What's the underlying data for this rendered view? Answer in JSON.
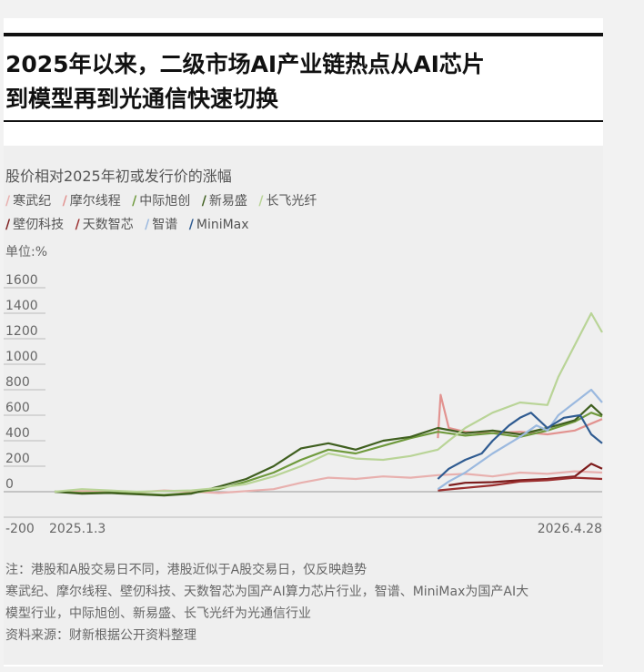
{
  "title_line1": "2025年以来，二级市场AI产业链热点从AI芯片",
  "title_line2": "到模型再到光通信快速切换",
  "chart_data": {
    "type": "line",
    "title": "股价相对2025年初或发行价的涨幅",
    "unit": "单位:%",
    "ylim": [
      -200,
      1600
    ],
    "yticks": [
      -200,
      0,
      200,
      400,
      600,
      800,
      1000,
      1200,
      1400,
      1600
    ],
    "x_start_label": "2025.1.3",
    "x_end_label": "2026.4.28",
    "legend": "top",
    "grid": true,
    "series": [
      {
        "name": "寒武纪",
        "color": "#e8b0ae",
        "points": [
          [
            0,
            0
          ],
          [
            0.05,
            5
          ],
          [
            0.1,
            8
          ],
          [
            0.15,
            -5
          ],
          [
            0.2,
            10
          ],
          [
            0.25,
            0
          ],
          [
            0.3,
            -10
          ],
          [
            0.35,
            5
          ],
          [
            0.4,
            20
          ],
          [
            0.45,
            70
          ],
          [
            0.5,
            110
          ],
          [
            0.55,
            100
          ],
          [
            0.6,
            120
          ],
          [
            0.65,
            110
          ],
          [
            0.7,
            130
          ],
          [
            0.75,
            140
          ],
          [
            0.8,
            120
          ],
          [
            0.85,
            150
          ],
          [
            0.9,
            140
          ],
          [
            0.95,
            160
          ],
          [
            1.0,
            150
          ]
        ]
      },
      {
        "name": "摩尔线程",
        "color": "#e29390",
        "points": [
          [
            0.7,
            420
          ],
          [
            0.705,
            760
          ],
          [
            0.72,
            500
          ],
          [
            0.75,
            470
          ],
          [
            0.8,
            460
          ],
          [
            0.85,
            470
          ],
          [
            0.9,
            450
          ],
          [
            0.95,
            480
          ],
          [
            1.0,
            570
          ]
        ]
      },
      {
        "name": "中际旭创",
        "color": "#6f9a3d",
        "points": [
          [
            0,
            0
          ],
          [
            0.05,
            -10
          ],
          [
            0.1,
            -5
          ],
          [
            0.15,
            -15
          ],
          [
            0.2,
            -25
          ],
          [
            0.25,
            -10
          ],
          [
            0.3,
            20
          ],
          [
            0.35,
            80
          ],
          [
            0.4,
            150
          ],
          [
            0.45,
            250
          ],
          [
            0.5,
            330
          ],
          [
            0.55,
            300
          ],
          [
            0.6,
            360
          ],
          [
            0.65,
            420
          ],
          [
            0.7,
            470
          ],
          [
            0.75,
            440
          ],
          [
            0.8,
            460
          ],
          [
            0.85,
            430
          ],
          [
            0.9,
            480
          ],
          [
            0.95,
            550
          ],
          [
            0.98,
            620
          ],
          [
            1.0,
            590
          ]
        ]
      },
      {
        "name": "新易盛",
        "color": "#3f5f1f",
        "points": [
          [
            0,
            0
          ],
          [
            0.05,
            -15
          ],
          [
            0.1,
            -10
          ],
          [
            0.15,
            -20
          ],
          [
            0.2,
            -30
          ],
          [
            0.25,
            -15
          ],
          [
            0.3,
            40
          ],
          [
            0.35,
            100
          ],
          [
            0.4,
            200
          ],
          [
            0.45,
            340
          ],
          [
            0.5,
            380
          ],
          [
            0.55,
            330
          ],
          [
            0.6,
            400
          ],
          [
            0.65,
            430
          ],
          [
            0.7,
            500
          ],
          [
            0.75,
            460
          ],
          [
            0.8,
            480
          ],
          [
            0.85,
            450
          ],
          [
            0.9,
            500
          ],
          [
            0.95,
            560
          ],
          [
            0.98,
            680
          ],
          [
            1.0,
            600
          ]
        ]
      },
      {
        "name": "长飞光纤",
        "color": "#b9d497",
        "points": [
          [
            0,
            0
          ],
          [
            0.05,
            20
          ],
          [
            0.1,
            10
          ],
          [
            0.15,
            0
          ],
          [
            0.2,
            5
          ],
          [
            0.25,
            10
          ],
          [
            0.3,
            30
          ],
          [
            0.35,
            60
          ],
          [
            0.4,
            120
          ],
          [
            0.45,
            200
          ],
          [
            0.5,
            300
          ],
          [
            0.55,
            260
          ],
          [
            0.6,
            250
          ],
          [
            0.65,
            280
          ],
          [
            0.7,
            330
          ],
          [
            0.72,
            400
          ],
          [
            0.75,
            500
          ],
          [
            0.8,
            620
          ],
          [
            0.85,
            700
          ],
          [
            0.9,
            680
          ],
          [
            0.92,
            900
          ],
          [
            0.95,
            1150
          ],
          [
            0.98,
            1400
          ],
          [
            1.0,
            1250
          ]
        ]
      },
      {
        "name": "壁仞科技",
        "color": "#7d1c1c",
        "points": [
          [
            0.72,
            50
          ],
          [
            0.75,
            70
          ],
          [
            0.8,
            75
          ],
          [
            0.85,
            90
          ],
          [
            0.9,
            100
          ],
          [
            0.95,
            120
          ],
          [
            0.98,
            220
          ],
          [
            1.0,
            180
          ]
        ]
      },
      {
        "name": "天数智芯",
        "color": "#9b2f2f",
        "points": [
          [
            0.7,
            10
          ],
          [
            0.75,
            30
          ],
          [
            0.8,
            50
          ],
          [
            0.85,
            80
          ],
          [
            0.9,
            90
          ],
          [
            0.95,
            110
          ],
          [
            1.0,
            100
          ]
        ]
      },
      {
        "name": "智谱",
        "color": "#9bb9df",
        "points": [
          [
            0.7,
            20
          ],
          [
            0.72,
            80
          ],
          [
            0.75,
            150
          ],
          [
            0.8,
            300
          ],
          [
            0.85,
            430
          ],
          [
            0.88,
            520
          ],
          [
            0.9,
            480
          ],
          [
            0.92,
            600
          ],
          [
            0.95,
            700
          ],
          [
            0.98,
            800
          ],
          [
            1.0,
            700
          ]
        ]
      },
      {
        "name": "MiniMax",
        "color": "#2f5b91",
        "points": [
          [
            0.7,
            100
          ],
          [
            0.72,
            180
          ],
          [
            0.75,
            250
          ],
          [
            0.78,
            300
          ],
          [
            0.8,
            400
          ],
          [
            0.83,
            520
          ],
          [
            0.85,
            580
          ],
          [
            0.87,
            620
          ],
          [
            0.9,
            500
          ],
          [
            0.93,
            580
          ],
          [
            0.96,
            600
          ],
          [
            0.98,
            450
          ],
          [
            1.0,
            380
          ]
        ]
      }
    ]
  },
  "notes": {
    "line1": "注：港股和A股交易日不同，港股近似于A股交易日，仅反映趋势",
    "line2": "寒武纪、摩尔线程、壁仞科技、天数智芯为国产AI算力芯片行业，智谱、MiniMax为国产AI大",
    "line3": "模型行业，中际旭创、新易盛、长飞光纤为光通信行业",
    "line4": "资料来源：财新根据公开资料整理"
  },
  "colors": {
    "title_bar": "#111111",
    "panel_bg": "#efefef"
  }
}
